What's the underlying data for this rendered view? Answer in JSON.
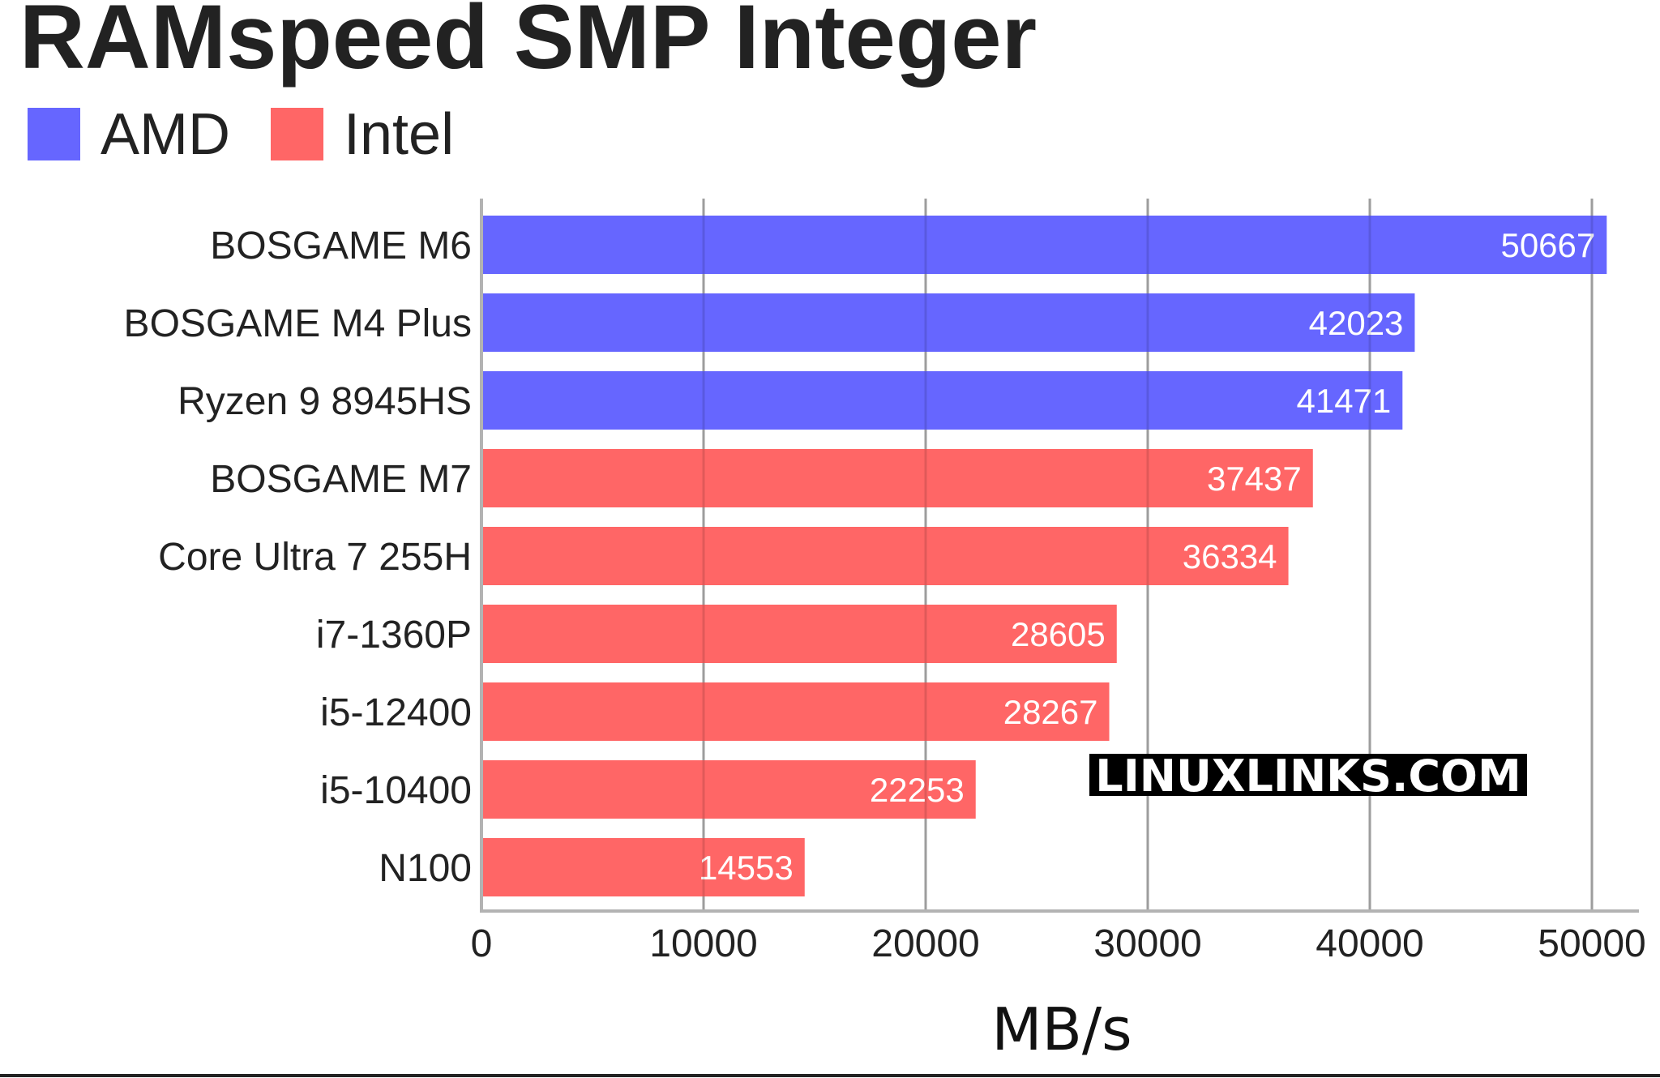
{
  "watermark": "LINUXLINKS.COM",
  "chart_data": {
    "type": "bar",
    "orientation": "horizontal",
    "title": "RAMspeed SMP Integer",
    "xlabel": "MB/s",
    "ylabel": "",
    "xlim": [
      0,
      52000
    ],
    "xticks": [
      0,
      10000,
      20000,
      30000,
      40000,
      50000
    ],
    "grid": true,
    "legend_position": "top-left",
    "legend": [
      {
        "name": "AMD",
        "color": "#6666ff"
      },
      {
        "name": "Intel",
        "color": "#ff6666"
      }
    ],
    "categories": [
      "BOSGAME M6",
      "BOSGAME M4 Plus",
      "Ryzen 9 8945HS",
      "BOSGAME M7",
      "Core Ultra 7 255H",
      "i7-1360P",
      "i5-12400",
      "i5-10400",
      "N100"
    ],
    "values": [
      50667,
      42023,
      41471,
      37437,
      36334,
      28605,
      28267,
      22253,
      14553
    ],
    "groups": [
      "AMD",
      "AMD",
      "AMD",
      "Intel",
      "Intel",
      "Intel",
      "Intel",
      "Intel",
      "Intel"
    ]
  }
}
